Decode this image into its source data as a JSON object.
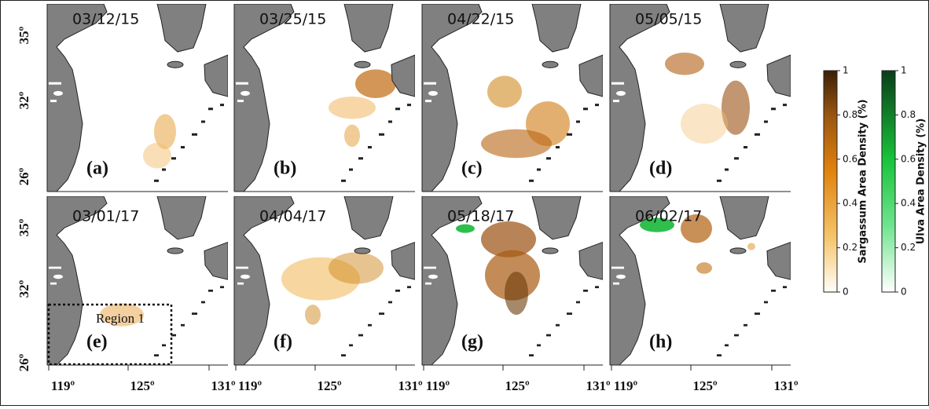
{
  "panels": [
    {
      "date": "03/12/15",
      "letter": "(a)"
    },
    {
      "date": "03/25/15",
      "letter": "(b)"
    },
    {
      "date": "04/22/15",
      "letter": "(c)"
    },
    {
      "date": "05/05/15",
      "letter": "(d)"
    },
    {
      "date": "03/01/17",
      "letter": "(e)"
    },
    {
      "date": "04/04/17",
      "letter": "(f)"
    },
    {
      "date": "05/18/17",
      "letter": "(g)"
    },
    {
      "date": "06/02/17",
      "letter": "(h)"
    }
  ],
  "lat_ticks": [
    "35º",
    "32º",
    "26º"
  ],
  "lon_ticks": [
    "119º",
    "125º",
    "131º"
  ],
  "region_label": "Region 1",
  "colorbars": [
    {
      "label": "Sargassum Area Density (%)",
      "ticks": [
        0,
        0.2,
        0.4,
        0.6,
        0.8,
        1
      ]
    },
    {
      "label": "Ulva Area Density (%)",
      "ticks": [
        0,
        0.2,
        0.4,
        0.6,
        0.8,
        1
      ]
    }
  ]
}
